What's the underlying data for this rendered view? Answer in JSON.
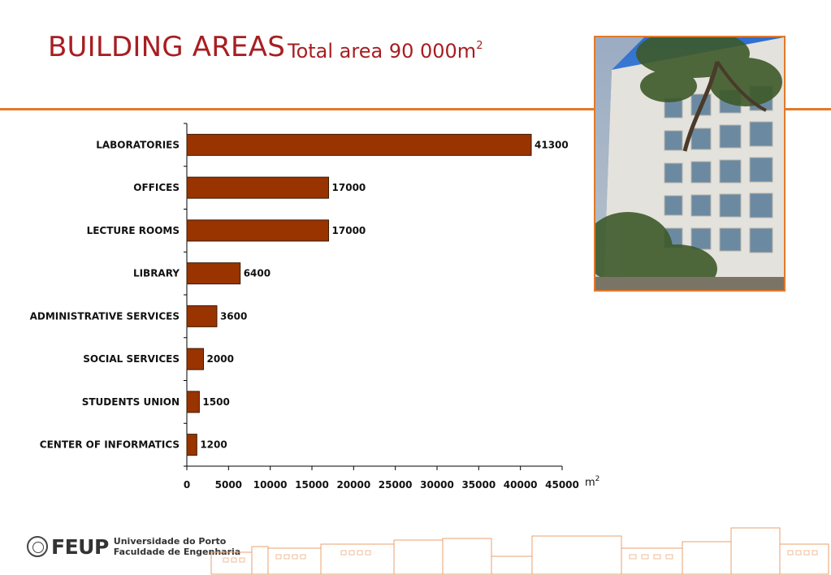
{
  "header": {
    "title": "BUILDING AREAS",
    "subtitle_prefix": "Total area  90 000m",
    "subtitle_sup": "2"
  },
  "photo": {
    "icon": "building-photo"
  },
  "footer": {
    "brand": "FEUP",
    "line1": "Universidade do Porto",
    "line2": "Faculdade de Engenharia"
  },
  "colors": {
    "accent": "#e07a2c",
    "title": "#a71e22",
    "bar": "#993300"
  },
  "chart_data": {
    "type": "bar",
    "orientation": "horizontal",
    "categories": [
      "LABORATORIES",
      "OFFICES",
      "LECTURE ROOMS",
      "LIBRARY",
      "ADMINISTRATIVE SERVICES",
      "SOCIAL SERVICES",
      "STUDENTS UNION",
      "CENTER OF INFORMATICS"
    ],
    "values": [
      41300,
      17000,
      17000,
      6400,
      3600,
      2000,
      1500,
      1200
    ],
    "xticks": [
      "0",
      "5000",
      "10000",
      "15000",
      "20000",
      "25000",
      "30000",
      "35000",
      "40000",
      "45000"
    ],
    "xlim": [
      0,
      45000
    ],
    "xunit": "m",
    "xunit_sup": "2",
    "grid": false,
    "data_labels": true
  }
}
